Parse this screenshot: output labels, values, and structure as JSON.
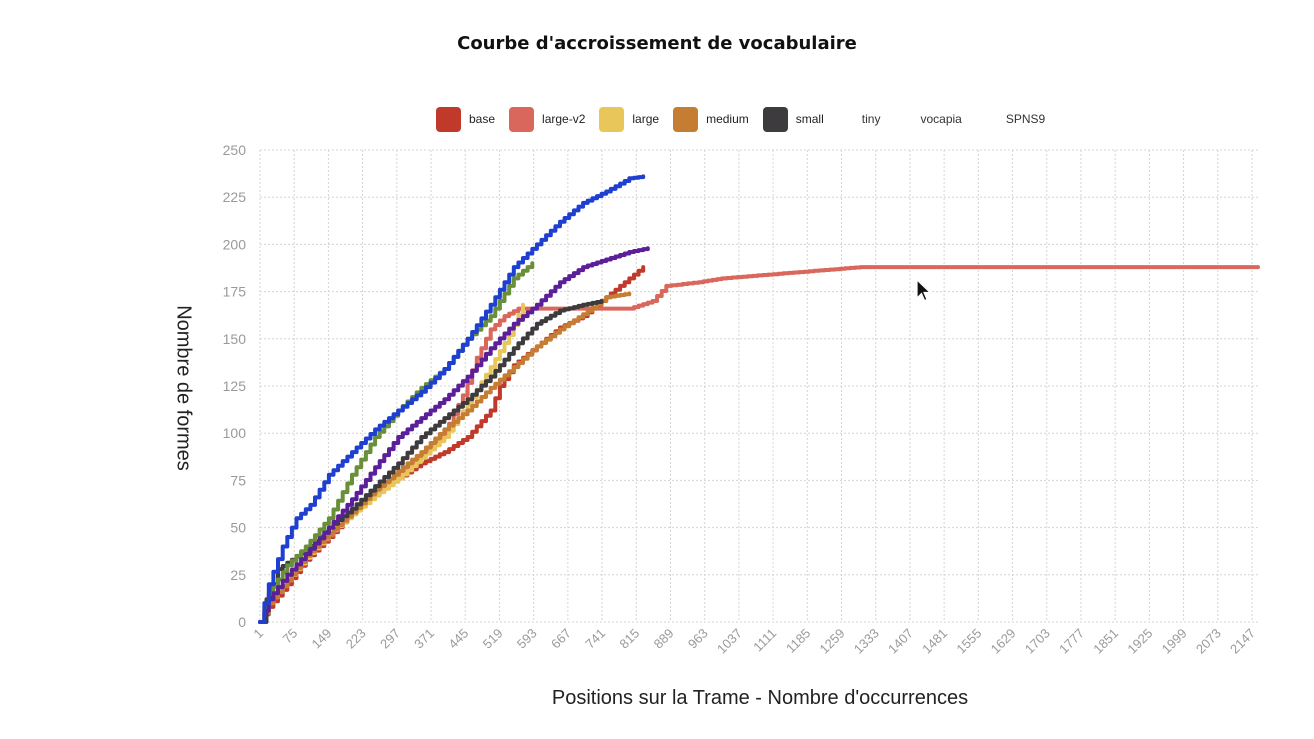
{
  "chart_data": {
    "type": "line",
    "title": "Courbe d'accroissement de vocabulaire",
    "xlabel": "Positions sur la Trame - Nombre d'occurrences",
    "ylabel": "Nombre de formes",
    "ylim": [
      0,
      250
    ],
    "xlim": [
      1,
      2160
    ],
    "grid": true,
    "legend_position": "top-center",
    "x_ticks": [
      "1",
      "75",
      "149",
      "223",
      "297",
      "371",
      "445",
      "519",
      "593",
      "667",
      "741",
      "815",
      "889",
      "963",
      "1037",
      "1111",
      "1185",
      "1259",
      "1333",
      "1407",
      "1481",
      "1555",
      "1629",
      "1703",
      "1777",
      "1851",
      "1925",
      "1999",
      "2073",
      "2147"
    ],
    "y_ticks": [
      0,
      25,
      50,
      75,
      100,
      125,
      150,
      175,
      200,
      225,
      250
    ],
    "legend": [
      {
        "name": "base",
        "color": "#c0392b",
        "hidden": false
      },
      {
        "name": "large-v2",
        "color": "#d9675b",
        "hidden": false
      },
      {
        "name": "large",
        "color": "#e8c65a",
        "hidden": false
      },
      {
        "name": "medium",
        "color": "#c47d33",
        "hidden": false
      },
      {
        "name": "small",
        "color": "#3e3b3f",
        "hidden": false
      },
      {
        "name": "tiny",
        "color": "#6a8f3a",
        "hidden": true
      },
      {
        "name": "vocapia",
        "color": "#5b1f9a",
        "hidden": true
      },
      {
        "name": "SPNS9",
        "color": "#1f3fd1",
        "hidden": true
      }
    ],
    "series": [
      {
        "name": "base",
        "color": "#c0392b",
        "x": [
          1,
          20,
          60,
          100,
          150,
          200,
          250,
          300,
          350,
          400,
          450,
          500,
          520,
          550,
          600,
          650,
          700,
          750,
          800,
          830
        ],
        "y": [
          0,
          8,
          20,
          33,
          45,
          58,
          68,
          76,
          84,
          90,
          98,
          112,
          125,
          136,
          146,
          156,
          162,
          172,
          182,
          188
        ]
      },
      {
        "name": "large-v2",
        "color": "#d9675b",
        "x": [
          1,
          20,
          60,
          100,
          150,
          200,
          250,
          300,
          350,
          400,
          440,
          470,
          500,
          530,
          560,
          600,
          650,
          700,
          750,
          800,
          850,
          880,
          950,
          1000,
          1100,
          1200,
          1300,
          1400,
          1600,
          1800,
          2000,
          2160
        ],
        "y": [
          0,
          10,
          22,
          34,
          46,
          58,
          68,
          78,
          88,
          100,
          120,
          140,
          155,
          162,
          166,
          166,
          166,
          166,
          166,
          166,
          170,
          178,
          180,
          182,
          184,
          186,
          188,
          188,
          188,
          188,
          188,
          188
        ]
      },
      {
        "name": "large",
        "color": "#e8c65a",
        "x": [
          1,
          20,
          60,
          100,
          150,
          200,
          250,
          300,
          350,
          400,
          450,
          500,
          540,
          570
        ],
        "y": [
          0,
          10,
          22,
          34,
          47,
          57,
          67,
          76,
          87,
          98,
          115,
          135,
          152,
          168
        ]
      },
      {
        "name": "medium",
        "color": "#c47d33",
        "x": [
          1,
          20,
          60,
          100,
          150,
          200,
          250,
          300,
          350,
          400,
          450,
          500,
          550,
          600,
          650,
          700,
          750,
          800
        ],
        "y": [
          0,
          10,
          22,
          35,
          47,
          58,
          70,
          80,
          90,
          102,
          112,
          124,
          135,
          146,
          155,
          163,
          172,
          174
        ]
      },
      {
        "name": "small",
        "color": "#3e3b3f",
        "x": [
          1,
          15,
          40,
          70,
          100,
          150,
          200,
          250,
          300,
          350,
          400,
          450,
          500,
          550,
          600,
          650,
          700,
          740
        ],
        "y": [
          0,
          12,
          28,
          33,
          38,
          50,
          60,
          72,
          84,
          98,
          108,
          118,
          130,
          145,
          158,
          165,
          168,
          170
        ]
      },
      {
        "name": "tiny",
        "color": "#6a8f3a",
        "x": [
          1,
          20,
          60,
          100,
          150,
          200,
          250,
          300,
          350,
          400,
          450,
          500,
          550,
          590
        ],
        "y": [
          0,
          15,
          30,
          40,
          55,
          78,
          98,
          112,
          124,
          134,
          150,
          162,
          182,
          190
        ]
      },
      {
        "name": "vocapia",
        "color": "#5b1f9a",
        "x": [
          1,
          20,
          60,
          100,
          150,
          200,
          250,
          300,
          350,
          400,
          450,
          500,
          550,
          600,
          650,
          700,
          750,
          800,
          840
        ],
        "y": [
          0,
          12,
          25,
          36,
          50,
          65,
          82,
          98,
          108,
          118,
          130,
          145,
          158,
          168,
          180,
          188,
          192,
          196,
          198
        ]
      },
      {
        "name": "SPNS9",
        "color": "#1f3fd1",
        "x": [
          1,
          20,
          50,
          80,
          110,
          150,
          200,
          250,
          300,
          350,
          400,
          450,
          500,
          550,
          600,
          650,
          700,
          750,
          800,
          830
        ],
        "y": [
          0,
          20,
          40,
          55,
          62,
          78,
          90,
          102,
          112,
          122,
          134,
          150,
          168,
          188,
          200,
          212,
          222,
          228,
          235,
          236
        ]
      }
    ]
  }
}
